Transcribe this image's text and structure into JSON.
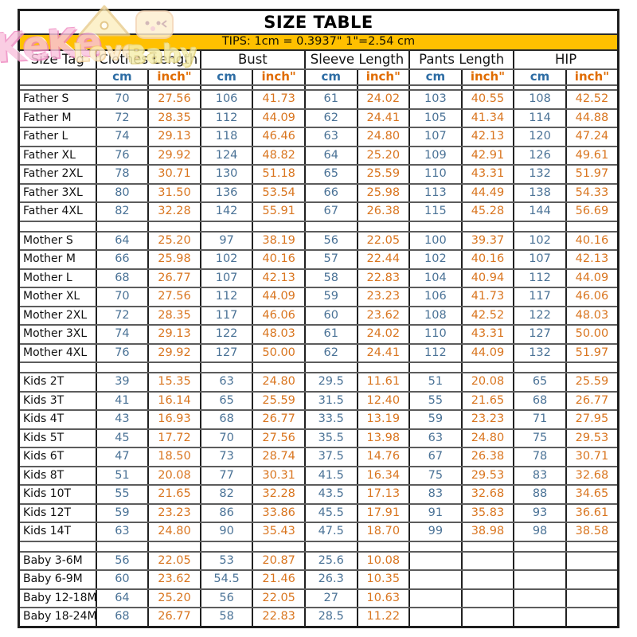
{
  "watermark": {
    "part1": "KeKe",
    "part2": "Love",
    "part3": "Baby"
  },
  "table": {
    "title": "SIZE TABLE",
    "tips": "TIPS: 1cm = 0.3937\"   1\"=2.54 cm",
    "groups": [
      "Size Tag",
      "Clothes Length",
      "Bust",
      "Sleeve Length",
      "Pants Length",
      "HIP"
    ],
    "units": {
      "cm": "cm",
      "inch": "inch\""
    },
    "colors": {
      "cm_value": "#4a7296",
      "inch_value": "#d9751f",
      "cm_header": "#2e6da4",
      "inch_header": "#e06c00",
      "tips_bg": "#ffc000"
    },
    "sections": [
      {
        "name": "father",
        "rows": [
          {
            "tag": "Father S",
            "cells": [
              "70",
              "27.56",
              "106",
              "41.73",
              "61",
              "24.02",
              "103",
              "40.55",
              "108",
              "42.52"
            ]
          },
          {
            "tag": "Father M",
            "cells": [
              "72",
              "28.35",
              "112",
              "44.09",
              "62",
              "24.41",
              "105",
              "41.34",
              "114",
              "44.88"
            ]
          },
          {
            "tag": "Father L",
            "cells": [
              "74",
              "29.13",
              "118",
              "46.46",
              "63",
              "24.80",
              "107",
              "42.13",
              "120",
              "47.24"
            ]
          },
          {
            "tag": "Father XL",
            "cells": [
              "76",
              "29.92",
              "124",
              "48.82",
              "64",
              "25.20",
              "109",
              "42.91",
              "126",
              "49.61"
            ]
          },
          {
            "tag": "Father 2XL",
            "cells": [
              "78",
              "30.71",
              "130",
              "51.18",
              "65",
              "25.59",
              "110",
              "43.31",
              "132",
              "51.97"
            ]
          },
          {
            "tag": "Father 3XL",
            "cells": [
              "80",
              "31.50",
              "136",
              "53.54",
              "66",
              "25.98",
              "113",
              "44.49",
              "138",
              "54.33"
            ]
          },
          {
            "tag": "Father 4XL",
            "cells": [
              "82",
              "32.28",
              "142",
              "55.91",
              "67",
              "26.38",
              "115",
              "45.28",
              "144",
              "56.69"
            ]
          }
        ]
      },
      {
        "name": "mother",
        "rows": [
          {
            "tag": "Mother S",
            "cells": [
              "64",
              "25.20",
              "97",
              "38.19",
              "56",
              "22.05",
              "100",
              "39.37",
              "102",
              "40.16"
            ]
          },
          {
            "tag": "Mother M",
            "cells": [
              "66",
              "25.98",
              "102",
              "40.16",
              "57",
              "22.44",
              "102",
              "40.16",
              "107",
              "42.13"
            ]
          },
          {
            "tag": "Mother L",
            "cells": [
              "68",
              "26.77",
              "107",
              "42.13",
              "58",
              "22.83",
              "104",
              "40.94",
              "112",
              "44.09"
            ]
          },
          {
            "tag": "Mother XL",
            "cells": [
              "70",
              "27.56",
              "112",
              "44.09",
              "59",
              "23.23",
              "106",
              "41.73",
              "117",
              "46.06"
            ]
          },
          {
            "tag": "Mother 2XL",
            "cells": [
              "72",
              "28.35",
              "117",
              "46.06",
              "60",
              "23.62",
              "108",
              "42.52",
              "122",
              "48.03"
            ]
          },
          {
            "tag": "Mother 3XL",
            "cells": [
              "74",
              "29.13",
              "122",
              "48.03",
              "61",
              "24.02",
              "110",
              "43.31",
              "127",
              "50.00"
            ]
          },
          {
            "tag": "Mother 4XL",
            "cells": [
              "76",
              "29.92",
              "127",
              "50.00",
              "62",
              "24.41",
              "112",
              "44.09",
              "132",
              "51.97"
            ]
          }
        ]
      },
      {
        "name": "kids",
        "rows": [
          {
            "tag": "Kids 2T",
            "cells": [
              "39",
              "15.35",
              "63",
              "24.80",
              "29.5",
              "11.61",
              "51",
              "20.08",
              "65",
              "25.59"
            ]
          },
          {
            "tag": "Kids 3T",
            "cells": [
              "41",
              "16.14",
              "65",
              "25.59",
              "31.5",
              "12.40",
              "55",
              "21.65",
              "68",
              "26.77"
            ]
          },
          {
            "tag": "Kids 4T",
            "cells": [
              "43",
              "16.93",
              "68",
              "26.77",
              "33.5",
              "13.19",
              "59",
              "23.23",
              "71",
              "27.95"
            ]
          },
          {
            "tag": "Kids 5T",
            "cells": [
              "45",
              "17.72",
              "70",
              "27.56",
              "35.5",
              "13.98",
              "63",
              "24.80",
              "75",
              "29.53"
            ]
          },
          {
            "tag": "Kids 6T",
            "cells": [
              "47",
              "18.50",
              "73",
              "28.74",
              "37.5",
              "14.76",
              "67",
              "26.38",
              "78",
              "30.71"
            ]
          },
          {
            "tag": "Kids 8T",
            "cells": [
              "51",
              "20.08",
              "77",
              "30.31",
              "41.5",
              "16.34",
              "75",
              "29.53",
              "83",
              "32.68"
            ]
          },
          {
            "tag": "Kids 10T",
            "cells": [
              "55",
              "21.65",
              "82",
              "32.28",
              "43.5",
              "17.13",
              "83",
              "32.68",
              "88",
              "34.65"
            ]
          },
          {
            "tag": "Kids 12T",
            "cells": [
              "59",
              "23.23",
              "86",
              "33.86",
              "45.5",
              "17.91",
              "91",
              "35.83",
              "93",
              "36.61"
            ]
          },
          {
            "tag": "Kids 14T",
            "cells": [
              "63",
              "24.80",
              "90",
              "35.43",
              "47.5",
              "18.70",
              "99",
              "38.98",
              "98",
              "38.58"
            ]
          }
        ]
      },
      {
        "name": "baby",
        "rows": [
          {
            "tag": "Baby 3-6M",
            "cells": [
              "56",
              "22.05",
              "53",
              "20.87",
              "25.6",
              "10.08",
              "",
              "",
              "",
              ""
            ]
          },
          {
            "tag": "Baby 6-9M",
            "cells": [
              "60",
              "23.62",
              "54.5",
              "21.46",
              "26.3",
              "10.35",
              "",
              "",
              "",
              ""
            ]
          },
          {
            "tag": "Baby 12-18M",
            "cells": [
              "64",
              "25.20",
              "56",
              "22.05",
              "27",
              "10.63",
              "",
              "",
              "",
              ""
            ]
          },
          {
            "tag": "Baby 18-24M",
            "cells": [
              "68",
              "26.77",
              "58",
              "22.83",
              "28.5",
              "11.22",
              "",
              "",
              "",
              ""
            ]
          }
        ]
      }
    ]
  }
}
